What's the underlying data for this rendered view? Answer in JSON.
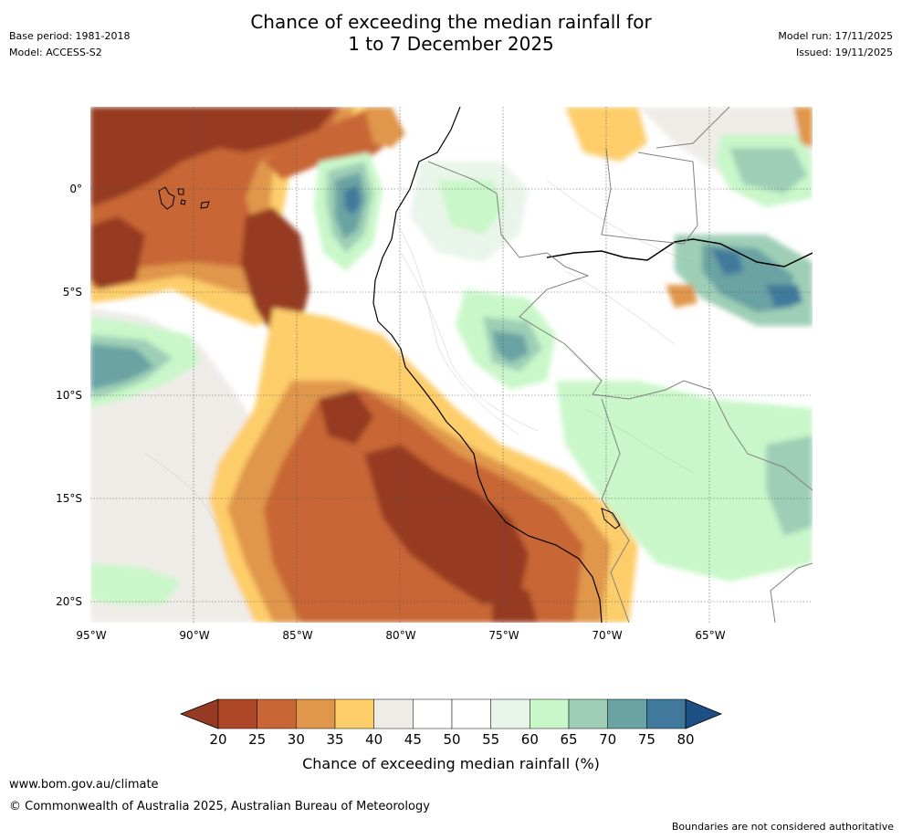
{
  "title": {
    "line1": "Chance of exceeding the median rainfall for",
    "line2": "1 to 7 December 2025"
  },
  "meta_left": {
    "base_period": "Base period: 1981-2018",
    "model": "Model: ACCESS-S2"
  },
  "meta_right": {
    "model_run": "Model run: 17/11/2025",
    "issued": "Issued: 19/11/2025"
  },
  "map": {
    "lat_labels": [
      "0°",
      "5°S",
      "10°S",
      "15°S",
      "20°S"
    ],
    "lon_labels": [
      "95°W",
      "90°W",
      "85°W",
      "80°W",
      "75°W",
      "70°W",
      "65°W"
    ]
  },
  "colorbar": {
    "title": "Chance of exceeding median rainfall (%)",
    "ticks": [
      "20",
      "25",
      "30",
      "35",
      "40",
      "45",
      "50",
      "55",
      "60",
      "65",
      "70",
      "75",
      "80"
    ],
    "colors": [
      "#963a24",
      "#ad4727",
      "#c86635",
      "#e0964b",
      "#fdcd6a",
      "#efece8",
      "#ffffff",
      "#ffffff",
      "#e9f5ea",
      "#c9f7c9",
      "#9ecfb6",
      "#6aa3a3",
      "#40799c",
      "#1d4f84"
    ]
  },
  "footer": {
    "website": "www.bom.gov.au/climate",
    "copyright": "© Commonwealth of Australia 2025, Australian Bureau of Meteorology",
    "disclaimer": "Boundaries are not considered authoritative"
  }
}
